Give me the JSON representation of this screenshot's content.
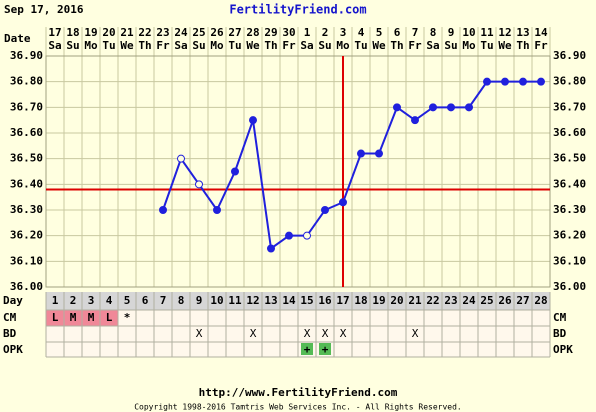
{
  "header": {
    "date": "Sep 17, 2016",
    "site": "FertilityFriend.com"
  },
  "chart_data": {
    "type": "line",
    "categories": [
      "1",
      "2",
      "3",
      "4",
      "5",
      "6",
      "7",
      "8",
      "9",
      "10",
      "11",
      "12",
      "13",
      "14",
      "15",
      "16",
      "17",
      "18",
      "19",
      "20",
      "21",
      "22",
      "23",
      "24",
      "25",
      "26",
      "27",
      "28"
    ],
    "dates": [
      "17",
      "18",
      "19",
      "20",
      "21",
      "22",
      "23",
      "24",
      "25",
      "26",
      "27",
      "28",
      "29",
      "30",
      "1",
      "2",
      "3",
      "4",
      "5",
      "6",
      "7",
      "8",
      "9",
      "10",
      "11",
      "12",
      "13",
      "14"
    ],
    "weekdays": [
      "Sa",
      "Su",
      "Mo",
      "Tu",
      "We",
      "Th",
      "Fr",
      "Sa",
      "Su",
      "Mo",
      "Tu",
      "We",
      "Th",
      "Fr",
      "Sa",
      "Su",
      "Mo",
      "Tu",
      "We",
      "Th",
      "Fr",
      "Sa",
      "Su",
      "Mo",
      "Tu",
      "We",
      "Th",
      "Fr"
    ],
    "series": [
      {
        "color": "#2020dd",
        "values": [
          null,
          null,
          null,
          null,
          null,
          null,
          36.3,
          36.5,
          36.4,
          36.3,
          36.45,
          36.65,
          36.15,
          36.2,
          36.2,
          36.3,
          36.33,
          36.52,
          36.52,
          36.7,
          36.65,
          36.7,
          36.7,
          36.7,
          36.8,
          36.8,
          36.8,
          36.8
        ],
        "markers": [
          null,
          null,
          null,
          null,
          null,
          null,
          "filled",
          "open",
          "open",
          "filled",
          "filled",
          "filled",
          "filled",
          "filled",
          "open",
          "filled",
          "filled",
          "filled",
          "filled",
          "filled",
          "filled",
          "filled",
          "filled",
          "filled",
          "filled",
          "filled",
          "filled",
          "filled"
        ]
      }
    ],
    "coverline": 36.38,
    "coverline_color": "#dd0000",
    "ovulation_day": "17",
    "ylim": [
      36.0,
      36.9
    ],
    "yticks": [
      {
        "value": 36.0,
        "label": "36.00"
      },
      {
        "value": 36.1,
        "label": "36.10"
      },
      {
        "value": 36.2,
        "label": "36.20"
      },
      {
        "value": 36.3,
        "label": "36.30"
      },
      {
        "value": 36.4,
        "label": "36.40"
      },
      {
        "value": 36.5,
        "label": "36.50"
      },
      {
        "value": 36.6,
        "label": "36.60"
      },
      {
        "value": 36.7,
        "label": "36.70"
      },
      {
        "value": 36.8,
        "label": "36.80"
      },
      {
        "value": 36.9,
        "label": "36.90"
      }
    ],
    "grid": true,
    "row_labels": {
      "date": "Date",
      "day": "Day",
      "cm": "CM",
      "bd": "BD",
      "opk": "OPK"
    },
    "cm": [
      "L",
      "M",
      "M",
      "L",
      "*",
      null,
      null,
      null,
      null,
      null,
      null,
      null,
      null,
      null,
      null,
      null,
      null,
      null,
      null,
      null,
      null,
      null,
      null,
      null,
      null,
      null,
      null,
      null
    ],
    "cm_colors": [
      "#f08898",
      "#f08898",
      "#f08898",
      "#f08898",
      null,
      null,
      null,
      null,
      null,
      null,
      null,
      null,
      null,
      null,
      null,
      null,
      null,
      null,
      null,
      null,
      null,
      null,
      null,
      null,
      null,
      null,
      null,
      null
    ],
    "bd": [
      null,
      null,
      null,
      null,
      null,
      null,
      null,
      null,
      "X",
      null,
      null,
      "X",
      null,
      null,
      "X",
      "X",
      "X",
      null,
      null,
      null,
      "X",
      null,
      null,
      null,
      null,
      null,
      null,
      null
    ],
    "opk": [
      null,
      null,
      null,
      null,
      null,
      null,
      null,
      null,
      null,
      null,
      null,
      null,
      null,
      null,
      "+",
      "+",
      null,
      null,
      null,
      null,
      null,
      null,
      null,
      null,
      null,
      null,
      null,
      null
    ],
    "opk_color": "#55bb55"
  },
  "footer": {
    "url": "http://www.FertilityFriend.com",
    "copyright": "Copyright 1998-2016 Tamtris Web Services Inc. - All Rights Reserved."
  }
}
